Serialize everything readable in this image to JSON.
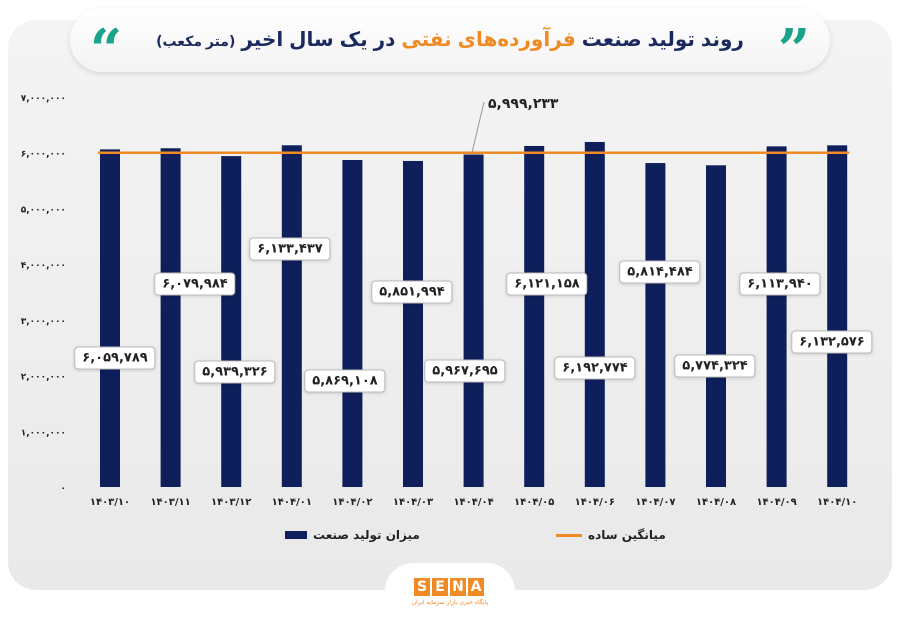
{
  "title": {
    "part1": "روند تولید صنعت",
    "highlight": "فرآورده‌های نفتی",
    "part2": "در یک سال اخیر",
    "unit": "(متر مکعب)"
  },
  "legend": {
    "bars": "میزان تولید صنعت",
    "line": "میانگین ساده"
  },
  "logo": {
    "text": "SENA",
    "subtitle": "پایگاه خبری بازار سرمایه ایران"
  },
  "colors": {
    "bar": "#0e1f5b",
    "average": "#f08a24",
    "accent": "#1aa38a"
  },
  "chart_data": {
    "type": "bar",
    "categories": [
      "1403/10",
      "1403/11",
      "1403/12",
      "1404/01",
      "1404/02",
      "1404/03",
      "1404/04",
      "1404/05",
      "1404/06",
      "1404/07",
      "1404/08",
      "1404/09",
      "1404/10"
    ],
    "category_labels": [
      "۱۴۰۳/۱۰",
      "۱۴۰۳/۱۱",
      "۱۴۰۳/۱۲",
      "۱۴۰۴/۰۱",
      "۱۴۰۴/۰۲",
      "۱۴۰۴/۰۳",
      "۱۴۰۴/۰۴",
      "۱۴۰۴/۰۵",
      "۱۴۰۴/۰۶",
      "۱۴۰۴/۰۷",
      "۱۴۰۴/۰۸",
      "۱۴۰۴/۰۹",
      "۱۴۰۴/۱۰"
    ],
    "series": [
      {
        "name": "میزان تولید صنعت",
        "values": [
          6059789,
          6079984,
          5939326,
          6133437,
          5869108,
          5851994,
          5967695,
          6121158,
          6192774,
          5814484,
          5774324,
          6113940,
          6132576
        ]
      }
    ],
    "data_labels": [
      "۶,۰۵۹,۷۸۹",
      "۶,۰۷۹,۹۸۴",
      "۵,۹۳۹,۳۲۶",
      "۶,۱۳۳,۴۳۷",
      "۵,۸۶۹,۱۰۸",
      "۵,۸۵۱,۹۹۴",
      "۵,۹۶۷,۶۹۵",
      "۶,۱۲۱,۱۵۸",
      "۶,۱۹۲,۷۷۴",
      "۵,۸۱۴,۴۸۴",
      "۵,۷۷۴,۳۲۴",
      "۶,۱۱۳,۹۴۰",
      "۶,۱۳۲,۵۷۶"
    ],
    "average": {
      "name": "میانگین ساده",
      "value": 5999233,
      "label": "۵,۹۹۹,۲۳۳"
    },
    "ylim": [
      0,
      7000000
    ],
    "yticks": [
      0,
      1000000,
      2000000,
      3000000,
      4000000,
      5000000,
      6000000,
      7000000
    ],
    "ytick_labels": [
      "۰",
      "۱,۰۰۰,۰۰۰",
      "۲,۰۰۰,۰۰۰",
      "۳,۰۰۰,۰۰۰",
      "۴,۰۰۰,۰۰۰",
      "۵,۰۰۰,۰۰۰",
      "۶,۰۰۰,۰۰۰",
      "۷,۰۰۰,۰۰۰"
    ],
    "grid": false,
    "legend_position": "bottom"
  }
}
